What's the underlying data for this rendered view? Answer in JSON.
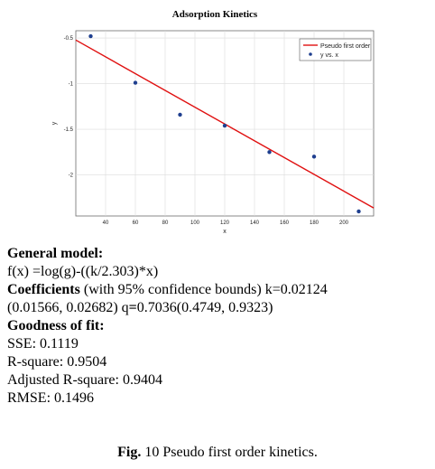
{
  "chart_data": {
    "type": "scatter",
    "title": "Adsorption Kinetics",
    "xlabel": "x",
    "ylabel": "y",
    "xlim": [
      20,
      220
    ],
    "ylim": [
      -2.45,
      -0.42
    ],
    "x_ticks": [
      40,
      60,
      80,
      100,
      120,
      140,
      160,
      180,
      200
    ],
    "x_tick_labels": [
      "40",
      "60",
      "80",
      "100",
      "120",
      "140",
      "160",
      "180",
      "200"
    ],
    "y_ticks": [
      -0.5,
      -1,
      -1.5,
      -2
    ],
    "y_tick_labels": [
      "-0.5",
      "-1",
      "-1.5",
      "-2"
    ],
    "grid": true,
    "legend_position": "top-right",
    "series": [
      {
        "name": "y vs. x",
        "kind": "scatter",
        "color": "#1f3f8f",
        "x": [
          30,
          60,
          90,
          120,
          150,
          180,
          210
        ],
        "y": [
          -0.48,
          -0.99,
          -1.34,
          -1.46,
          -1.75,
          -1.8,
          -2.4
        ]
      },
      {
        "name": "Pseudo first order",
        "kind": "line",
        "color": "#e01010",
        "x": [
          20,
          220
        ],
        "y": [
          -0.522,
          -2.362
        ]
      }
    ]
  },
  "stats": {
    "general_model_label": "General model:",
    "model_formula": "f(x) =log(g)-((k/2.303)*x)",
    "coefficients_label": "Coefficients",
    "coefficients_text_1": " (with 95% confidence bounds) k=0.02124",
    "coefficients_text_2": "(0.01566, 0.02682) q",
    "coefficients_eq": "=",
    "coefficients_text_3": "0.7036(0.4749, 0.9323)",
    "goodness_label": "Goodness of fit:",
    "sse": "SSE: 0.1119",
    "rsquare": "R-square: 0.9504",
    "adj_rsquare": "Adjusted R-square: 0.9404",
    "rmse": "RMSE: 0.1496"
  },
  "caption": {
    "label": "Fig.",
    "text": " 10 Pseudo first order kinetics."
  }
}
